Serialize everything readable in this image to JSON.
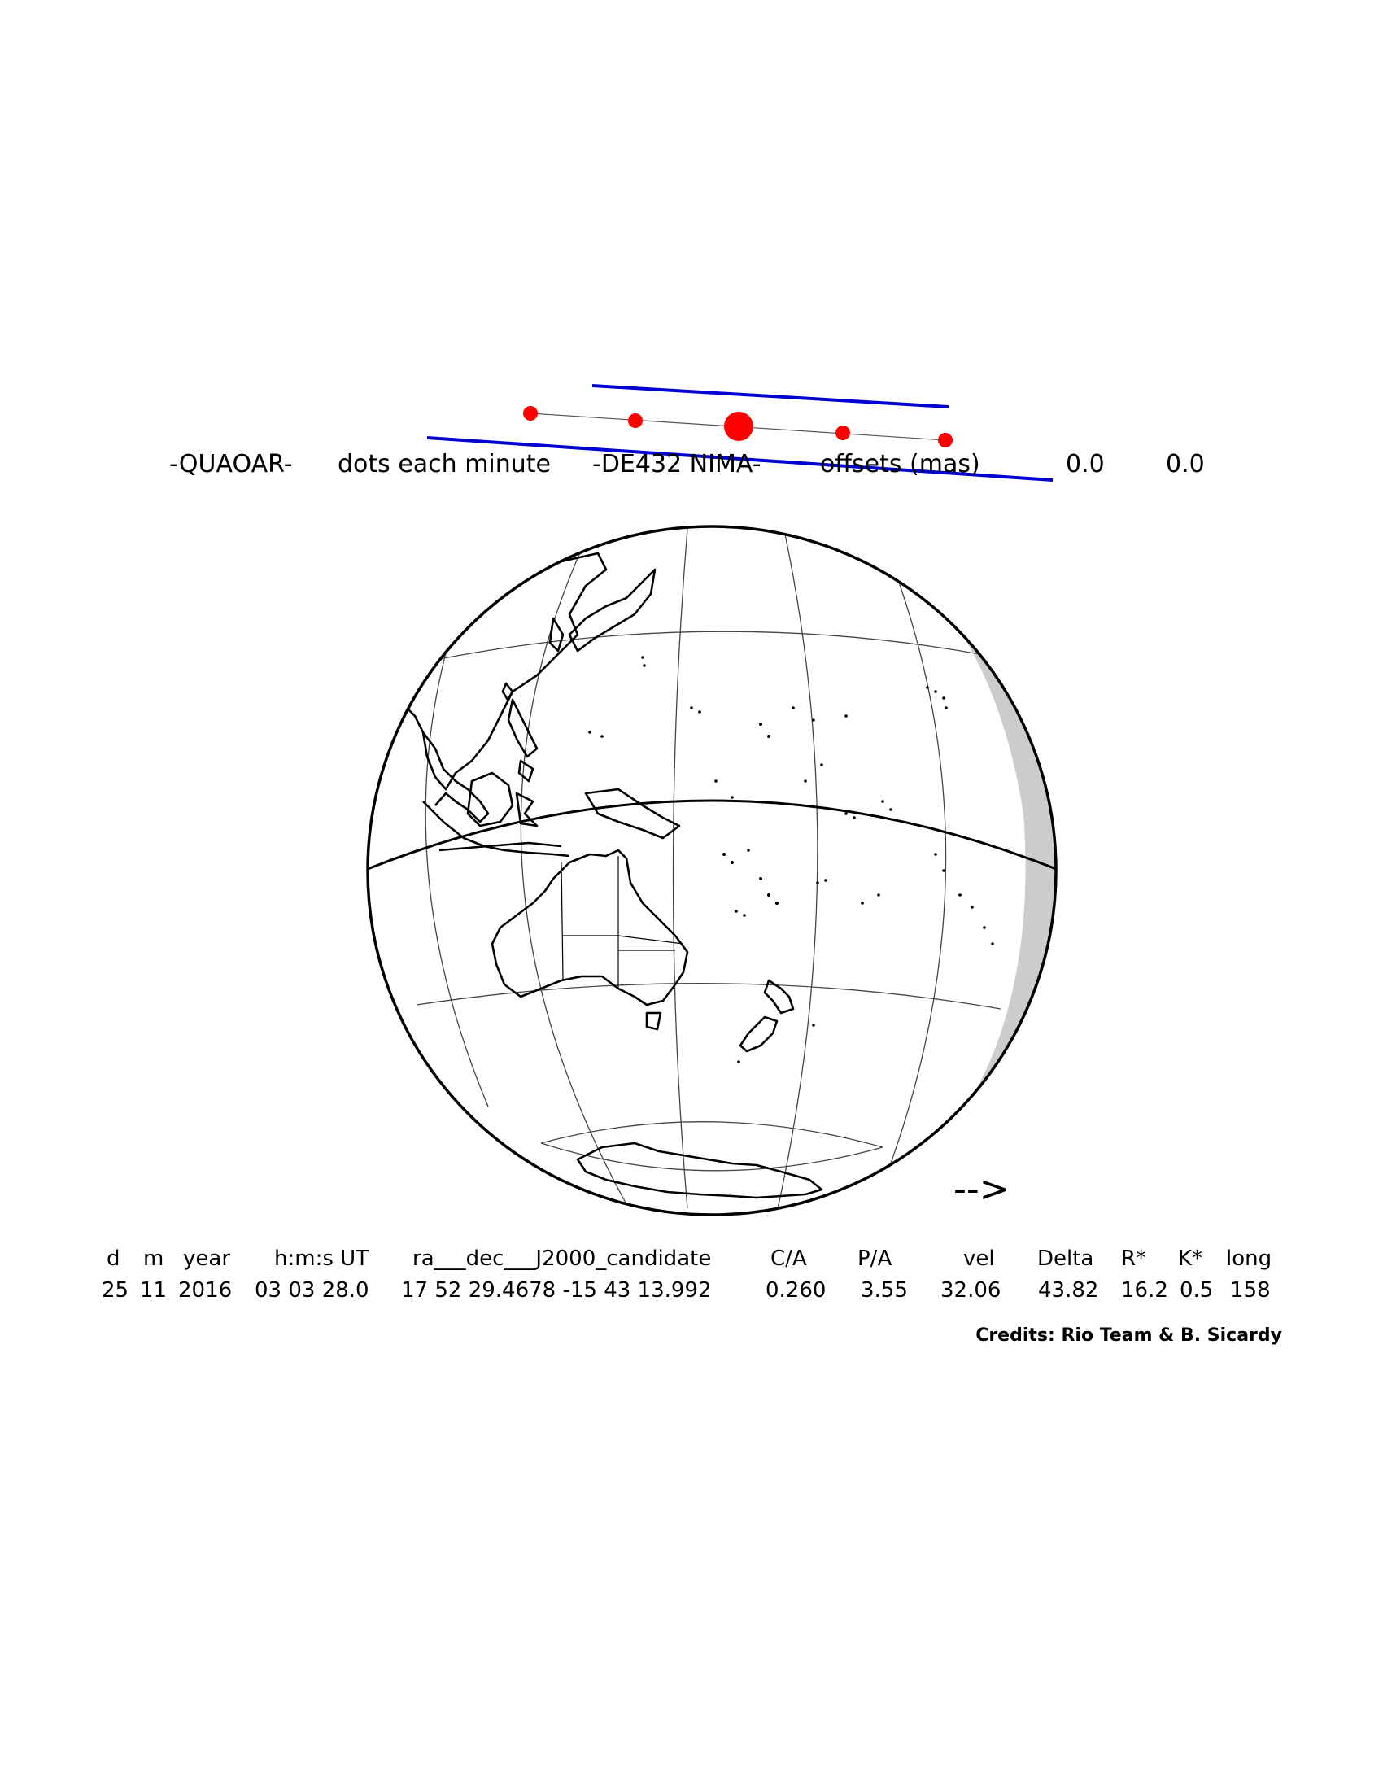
{
  "title": {
    "object": "-QUAOAR-",
    "dots_label": "dots each minute",
    "ephemeris": "-DE432 NIMA-",
    "offsets_label": "offsets (mas)",
    "offset_ra": "0.0",
    "offset_dec": "0.0"
  },
  "direction_arrow": "-->",
  "table": {
    "headers": [
      "d",
      "m",
      "year",
      "h:m:s UT",
      "ra___dec___J2000_candidate",
      "C/A",
      "P/A",
      "vel",
      "Delta",
      "R*",
      "K*",
      "long"
    ],
    "values": [
      "25",
      "11",
      "2016",
      "03 03 28.0",
      "17 52 29.4678 -15 43 13.992",
      "0.260",
      "3.55",
      "32.06",
      "43.82",
      "16.2",
      "0.5",
      "158"
    ]
  },
  "credits": "Credits: Rio Team & B. Sicardy",
  "colors": {
    "path_dots": "#ff0000",
    "shadow_limits": "#0000d0",
    "night_side": "#cccccc",
    "background": "#ffffff"
  }
}
